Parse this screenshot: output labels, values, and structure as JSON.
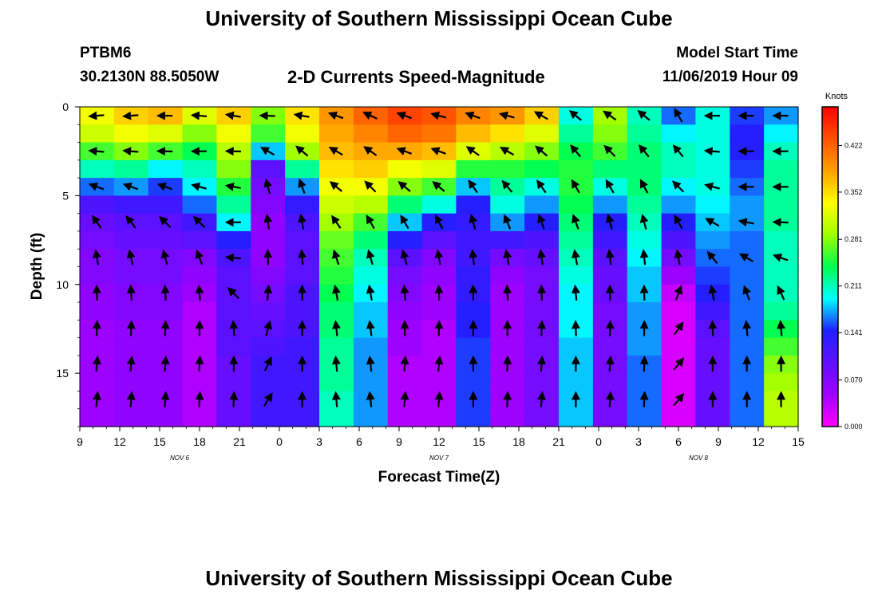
{
  "header": {
    "title": "University of Southern Mississippi Ocean Cube",
    "station": "PTBM6",
    "location": "30.2130N 88.5050W",
    "subtitle": "2-D Currents Speed-Magnitude",
    "model_start_label": "Model Start Time",
    "model_start_value": "11/06/2019 Hour 09"
  },
  "footer": {
    "title": "University of Southern Mississippi Ocean Cube"
  },
  "chart_data": {
    "type": "heatmap",
    "title": "2-D Currents Speed-Magnitude",
    "xlabel": "Forecast Time(Z)",
    "ylabel": "Depth (ft)",
    "x_tick_labels": [
      "9",
      "12",
      "15",
      "18",
      "21",
      "0",
      "3",
      "6",
      "9",
      "12",
      "15",
      "18",
      "21",
      "0",
      "3",
      "6",
      "9",
      "12",
      "15"
    ],
    "x_range_hours": [
      0,
      54
    ],
    "date_labels": [
      {
        "text": "NOV  6",
        "hour": 7.5
      },
      {
        "text": "NOV  7",
        "hour": 27
      },
      {
        "text": "NOV  8",
        "hour": 46.5
      }
    ],
    "y_tick_labels": [
      "0",
      "5",
      "10",
      "15"
    ],
    "y_range_ft": [
      0,
      18
    ],
    "colorbar": {
      "unit": "Knots",
      "tick_labels": [
        "0.422",
        "0.352",
        "0.281",
        "0.211",
        "0.141",
        "0.070",
        "0.000"
      ],
      "min": 0.0,
      "max": 0.48
    },
    "columns": [
      {
        "name": "c0",
        "s": [
          0.33,
          0.31,
          0.26,
          0.21,
          0.16,
          0.11,
          0.09,
          0.08,
          0.07,
          0.07,
          0.06,
          0.06,
          0.05,
          0.05,
          0.05,
          0.05,
          0.05,
          0.05
        ],
        "a": [
          185,
          180,
          175,
          168,
          160,
          150,
          125,
          110,
          100,
          95,
          92,
          90,
          88,
          86,
          85,
          85,
          85,
          85
        ]
      },
      {
        "name": "c1",
        "s": [
          0.36,
          0.33,
          0.28,
          0.22,
          0.17,
          0.12,
          0.1,
          0.09,
          0.08,
          0.08,
          0.07,
          0.07,
          0.06,
          0.06,
          0.06,
          0.06,
          0.06,
          0.06
        ],
        "a": [
          185,
          180,
          175,
          168,
          160,
          150,
          128,
          112,
          102,
          96,
          93,
          90,
          88,
          86,
          85,
          85,
          85,
          85
        ]
      },
      {
        "name": "c2",
        "s": [
          0.37,
          0.32,
          0.26,
          0.19,
          0.15,
          0.12,
          0.1,
          0.09,
          0.08,
          0.08,
          0.07,
          0.07,
          0.06,
          0.06,
          0.06,
          0.06,
          0.06,
          0.06
        ],
        "a": [
          180,
          180,
          178,
          170,
          160,
          150,
          135,
          120,
          105,
          98,
          93,
          90,
          88,
          87,
          86,
          86,
          86,
          86
        ]
      },
      {
        "name": "c3",
        "s": [
          0.32,
          0.28,
          0.24,
          0.21,
          0.19,
          0.16,
          0.12,
          0.1,
          0.07,
          0.06,
          0.05,
          0.04,
          0.04,
          0.04,
          0.04,
          0.04,
          0.04,
          0.04
        ],
        "a": [
          175,
          178,
          180,
          178,
          165,
          150,
          135,
          120,
          110,
          100,
          95,
          92,
          90,
          88,
          86,
          86,
          86,
          86
        ]
      },
      {
        "name": "c4",
        "s": [
          0.36,
          0.33,
          0.3,
          0.28,
          0.25,
          0.22,
          0.19,
          0.14,
          0.11,
          0.1,
          0.1,
          0.1,
          0.1,
          0.1,
          0.09,
          0.09,
          0.09,
          0.09
        ],
        "a": [
          170,
          175,
          178,
          175,
          170,
          175,
          180,
          178,
          175,
          170,
          135,
          100,
          95,
          92,
          90,
          88,
          88,
          88
        ]
      },
      {
        "name": "c5",
        "s": [
          0.28,
          0.26,
          0.18,
          0.1,
          0.08,
          0.07,
          0.06,
          0.06,
          0.06,
          0.07,
          0.08,
          0.09,
          0.1,
          0.11,
          0.12,
          0.12,
          0.12,
          0.12
        ],
        "a": [
          178,
          175,
          150,
          120,
          105,
          100,
          98,
          95,
          92,
          90,
          85,
          80,
          75,
          70,
          65,
          60,
          58,
          55
        ]
      },
      {
        "name": "c6",
        "s": [
          0.35,
          0.33,
          0.29,
          0.22,
          0.17,
          0.13,
          0.11,
          0.1,
          0.1,
          0.1,
          0.11,
          0.11,
          0.11,
          0.12,
          0.12,
          0.12,
          0.12,
          0.12
        ],
        "a": [
          170,
          160,
          140,
          120,
          110,
          105,
          100,
          98,
          95,
          92,
          90,
          90,
          90,
          90,
          90,
          90,
          90,
          90
        ]
      },
      {
        "name": "c7",
        "s": [
          0.39,
          0.38,
          0.37,
          0.35,
          0.33,
          0.31,
          0.29,
          0.27,
          0.26,
          0.25,
          0.24,
          0.23,
          0.23,
          0.22,
          0.22,
          0.22,
          0.21,
          0.21
        ],
        "a": [
          160,
          155,
          150,
          145,
          140,
          135,
          125,
          115,
          108,
          103,
          100,
          98,
          96,
          95,
          95,
          95,
          95,
          95
        ]
      },
      {
        "name": "c8",
        "s": [
          0.42,
          0.4,
          0.38,
          0.36,
          0.33,
          0.3,
          0.26,
          0.23,
          0.21,
          0.2,
          0.19,
          0.18,
          0.18,
          0.17,
          0.17,
          0.17,
          0.17,
          0.17
        ],
        "a": [
          155,
          150,
          145,
          140,
          135,
          128,
          120,
          112,
          106,
          102,
          100,
          98,
          97,
          96,
          96,
          96,
          96,
          96
        ]
      },
      {
        "name": "c9",
        "s": [
          0.44,
          0.42,
          0.38,
          0.33,
          0.28,
          0.23,
          0.18,
          0.14,
          0.1,
          0.08,
          0.07,
          0.06,
          0.05,
          0.05,
          0.04,
          0.04,
          0.04,
          0.04
        ],
        "a": [
          160,
          165,
          160,
          150,
          140,
          130,
          120,
          112,
          105,
          100,
          95,
          92,
          90,
          88,
          86,
          85,
          85,
          85
        ]
      },
      {
        "name": "c10",
        "s": [
          0.43,
          0.41,
          0.37,
          0.32,
          0.26,
          0.2,
          0.14,
          0.1,
          0.07,
          0.06,
          0.05,
          0.05,
          0.04,
          0.04,
          0.04,
          0.04,
          0.04,
          0.04
        ],
        "a": [
          165,
          165,
          160,
          150,
          140,
          130,
          118,
          108,
          100,
          95,
          92,
          90,
          88,
          86,
          85,
          85,
          85,
          85
        ]
      },
      {
        "name": "c11",
        "s": [
          0.4,
          0.37,
          0.32,
          0.25,
          0.18,
          0.14,
          0.13,
          0.12,
          0.12,
          0.13,
          0.13,
          0.14,
          0.14,
          0.15,
          0.15,
          0.15,
          0.15,
          0.15
        ],
        "a": [
          160,
          155,
          145,
          135,
          125,
          115,
          105,
          100,
          96,
          93,
          91,
          90,
          90,
          90,
          90,
          90,
          90,
          90
        ]
      },
      {
        "name": "c12",
        "s": [
          0.39,
          0.35,
          0.3,
          0.25,
          0.22,
          0.2,
          0.17,
          0.12,
          0.08,
          0.06,
          0.05,
          0.05,
          0.05,
          0.05,
          0.05,
          0.05,
          0.05,
          0.05
        ],
        "a": [
          165,
          160,
          150,
          140,
          130,
          120,
          112,
          106,
          100,
          96,
          93,
          91,
          90,
          89,
          88,
          88,
          88,
          88
        ]
      },
      {
        "name": "c13",
        "s": [
          0.36,
          0.32,
          0.28,
          0.24,
          0.2,
          0.17,
          0.14,
          0.11,
          0.09,
          0.08,
          0.08,
          0.08,
          0.08,
          0.08,
          0.08,
          0.08,
          0.08,
          0.08
        ],
        "a": [
          150,
          145,
          140,
          132,
          125,
          118,
          110,
          104,
          98,
          95,
          92,
          90,
          88,
          87,
          86,
          85,
          85,
          85
        ]
      },
      {
        "name": "c14",
        "s": [
          0.2,
          0.22,
          0.24,
          0.25,
          0.25,
          0.24,
          0.23,
          0.22,
          0.21,
          0.2,
          0.19,
          0.19,
          0.19,
          0.18,
          0.18,
          0.18,
          0.18,
          0.18
        ],
        "a": [
          140,
          135,
          130,
          125,
          120,
          115,
          110,
          105,
          100,
          97,
          95,
          93,
          92,
          91,
          90,
          90,
          90,
          90
        ]
      },
      {
        "name": "c15",
        "s": [
          0.29,
          0.28,
          0.26,
          0.23,
          0.2,
          0.17,
          0.14,
          0.12,
          0.1,
          0.09,
          0.09,
          0.08,
          0.08,
          0.08,
          0.08,
          0.08,
          0.08,
          0.08
        ],
        "a": [
          145,
          140,
          135,
          128,
          120,
          112,
          105,
          100,
          96,
          93,
          91,
          90,
          88,
          87,
          86,
          86,
          86,
          86
        ]
      },
      {
        "name": "c16",
        "s": [
          0.21,
          0.22,
          0.23,
          0.23,
          0.23,
          0.22,
          0.21,
          0.2,
          0.19,
          0.18,
          0.18,
          0.17,
          0.17,
          0.17,
          0.16,
          0.16,
          0.16,
          0.16
        ],
        "a": [
          140,
          135,
          130,
          125,
          118,
          110,
          104,
          100,
          96,
          93,
          91,
          90,
          89,
          88,
          88,
          88,
          88,
          88
        ]
      },
      {
        "name": "c17",
        "s": [
          0.16,
          0.19,
          0.21,
          0.21,
          0.19,
          0.17,
          0.14,
          0.11,
          0.08,
          0.05,
          0.03,
          0.02,
          0.02,
          0.02,
          0.02,
          0.02,
          0.02,
          0.02
        ],
        "a": [
          120,
          125,
          130,
          135,
          135,
          130,
          120,
          110,
          100,
          85,
          70,
          60,
          55,
          52,
          50,
          50,
          50,
          50
        ]
      },
      {
        "name": "c18",
        "s": [
          0.2,
          0.2,
          0.2,
          0.2,
          0.2,
          0.19,
          0.18,
          0.17,
          0.16,
          0.15,
          0.14,
          0.12,
          0.1,
          0.09,
          0.09,
          0.09,
          0.09,
          0.09
        ],
        "a": [
          180,
          178,
          175,
          170,
          165,
          160,
          150,
          140,
          130,
          115,
          100,
          95,
          92,
          90,
          90,
          90,
          90,
          90
        ]
      },
      {
        "name": "c19",
        "s": [
          0.15,
          0.14,
          0.14,
          0.15,
          0.16,
          0.17,
          0.17,
          0.16,
          0.16,
          0.16,
          0.16,
          0.16,
          0.16,
          0.16,
          0.16,
          0.16,
          0.16,
          0.16
        ],
        "a": [
          180,
          180,
          180,
          180,
          180,
          175,
          170,
          165,
          150,
          130,
          110,
          100,
          95,
          92,
          90,
          90,
          90,
          90
        ]
      },
      {
        "name": "c20",
        "s": [
          0.17,
          0.19,
          0.21,
          0.22,
          0.22,
          0.22,
          0.22,
          0.21,
          0.21,
          0.21,
          0.21,
          0.22,
          0.24,
          0.26,
          0.28,
          0.29,
          0.3,
          0.3
        ],
        "a": [
          180,
          180,
          180,
          180,
          180,
          180,
          178,
          175,
          160,
          140,
          115,
          100,
          95,
          92,
          90,
          90,
          90,
          90
        ]
      }
    ]
  }
}
